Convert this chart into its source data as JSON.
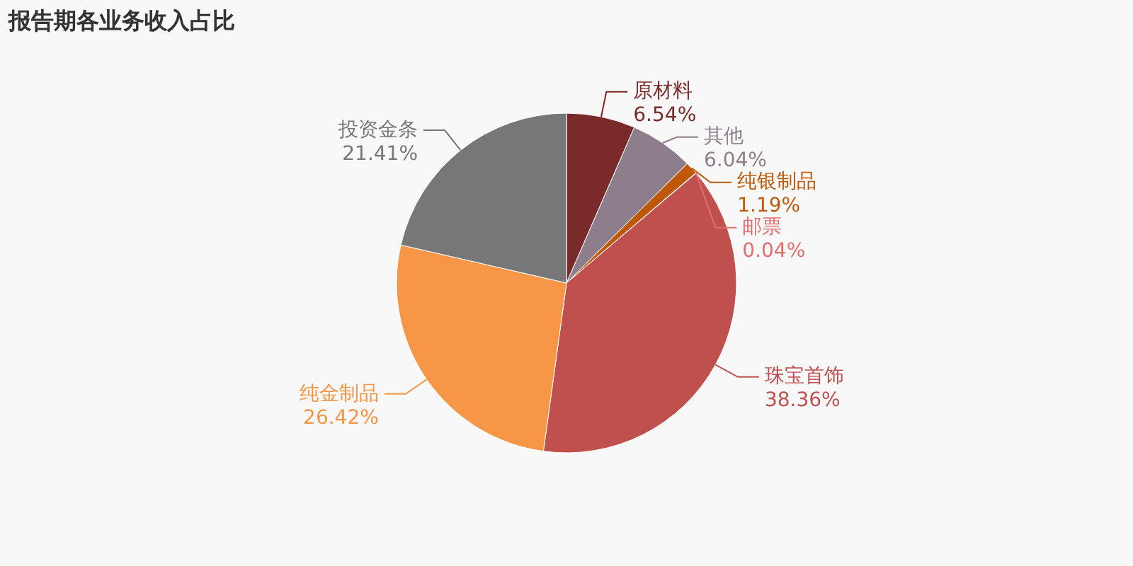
{
  "chart_data": {
    "type": "pie",
    "title": "报告期各业务收入占比",
    "categories": [
      "原材料",
      "其他",
      "纯银制品",
      "邮票",
      "珠宝首饰",
      "纯金制品",
      "投资金条"
    ],
    "values": [
      6.54,
      6.04,
      1.19,
      0.04,
      38.36,
      26.42,
      21.41
    ],
    "value_labels": [
      "6.54%",
      "6.04%",
      "1.19%",
      "0.04%",
      "38.36%",
      "26.42%",
      "21.41%"
    ],
    "colors": [
      "#7b2a2a",
      "#8e7d8b",
      "#c0580a",
      "#e07070",
      "#c0504d",
      "#f79646",
      "#777777"
    ]
  }
}
